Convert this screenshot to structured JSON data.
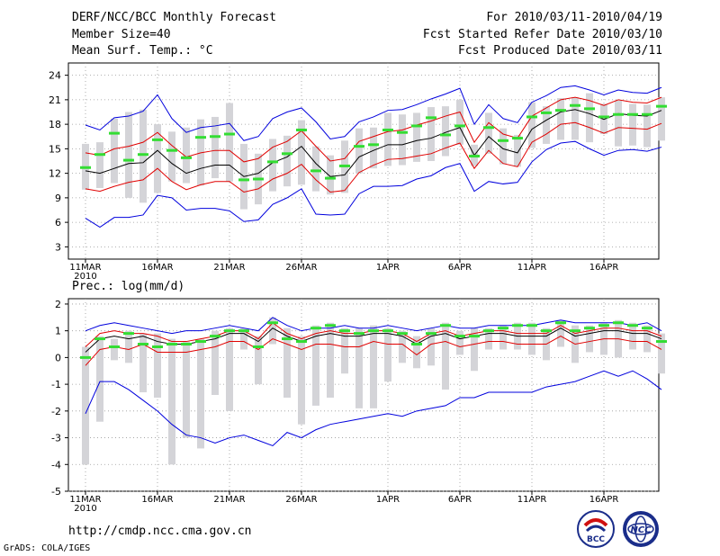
{
  "header": {
    "title_line1": "DERF/NCC/BCC Monthly Forecast",
    "title_line2": "Member Size=40",
    "title_line3": "Mean Surf. Temp.: °C",
    "range_line": "For 2010/03/11-2010/04/19",
    "start_line": "Fcst Started Refer Date 2010/03/10",
    "produced_line": "Fcst Produced Date 2010/03/11"
  },
  "footer": {
    "url": "http://cmdp.ncc.cma.gov.cn",
    "credit": "GrADS: COLA/IGES",
    "logo_bcc": "BCC",
    "logo_ncc": "NCC"
  },
  "colors": {
    "box": "#d4d4d8",
    "mean": "#000000",
    "inner": "#e00000",
    "outer": "#0000dd",
    "median": "#33dd33",
    "grid": "#999999"
  },
  "chart_data": [
    {
      "type": "line",
      "title": "Mean Surf. Temp.: °C",
      "xlabel": "",
      "ylabel": "",
      "x_ticks": [
        "11MAR",
        "16MAR",
        "21MAR",
        "26MAR",
        "1APR",
        "6APR",
        "11APR",
        "16APR"
      ],
      "x_tick_index": [
        0,
        5,
        10,
        15,
        21,
        26,
        31,
        36
      ],
      "x_sub_label": "2010",
      "days": 40,
      "ylim": [
        1.5,
        25.5
      ],
      "yticks": [
        3,
        6,
        9,
        12,
        15,
        18,
        21,
        24
      ],
      "series": {
        "mean": [
          12.3,
          12.0,
          12.6,
          13.2,
          13.3,
          14.8,
          13.2,
          12.0,
          12.6,
          13.0,
          13.0,
          11.6,
          12.0,
          13.3,
          14.0,
          15.3,
          13.2,
          11.6,
          11.8,
          14.0,
          14.8,
          15.5,
          15.5,
          16.0,
          16.3,
          17.0,
          17.6,
          14.2,
          16.5,
          15.0,
          14.5,
          17.4,
          18.5,
          19.5,
          19.8,
          19.3,
          18.6,
          19.3,
          19.1,
          19.0,
          19.7
        ],
        "inner_upper": [
          14.5,
          14.2,
          15.0,
          15.3,
          15.8,
          17.0,
          15.4,
          14.0,
          14.5,
          14.8,
          14.8,
          13.4,
          13.8,
          15.2,
          15.9,
          17.2,
          15.3,
          13.5,
          13.8,
          15.9,
          16.5,
          17.1,
          17.3,
          17.9,
          18.4,
          19.0,
          19.5,
          15.8,
          18.2,
          16.8,
          16.3,
          19.0,
          20.0,
          21.0,
          21.3,
          20.9,
          20.3,
          21.0,
          20.7,
          20.6,
          21.3
        ],
        "inner_lower": [
          10.1,
          9.8,
          10.4,
          10.9,
          11.2,
          12.6,
          11.0,
          10.0,
          10.6,
          11.0,
          11.0,
          9.7,
          10.1,
          11.3,
          12.0,
          13.1,
          11.2,
          9.7,
          9.9,
          12.1,
          13.0,
          13.7,
          13.8,
          14.1,
          14.4,
          15.1,
          15.7,
          12.6,
          14.8,
          13.2,
          12.8,
          15.8,
          16.8,
          18.0,
          18.2,
          17.6,
          16.9,
          17.6,
          17.5,
          17.4,
          18.1
        ],
        "outer_upper": [
          17.9,
          17.3,
          18.8,
          19.0,
          19.6,
          21.6,
          18.7,
          17.0,
          17.6,
          17.8,
          18.1,
          16.0,
          16.5,
          18.7,
          19.5,
          20.0,
          18.3,
          16.2,
          16.5,
          18.3,
          18.9,
          19.7,
          19.8,
          20.4,
          21.1,
          21.7,
          22.4,
          18.0,
          20.4,
          18.7,
          18.2,
          20.7,
          21.5,
          22.5,
          22.7,
          22.2,
          21.6,
          22.2,
          21.9,
          21.8,
          22.5
        ],
        "outer_lower": [
          6.5,
          5.4,
          6.6,
          6.6,
          6.9,
          9.3,
          9.0,
          7.5,
          7.7,
          7.7,
          7.4,
          6.1,
          6.3,
          8.2,
          9.0,
          10.1,
          7.0,
          6.9,
          7.0,
          9.5,
          10.4,
          10.4,
          10.5,
          11.3,
          11.7,
          12.7,
          13.2,
          9.8,
          11.0,
          10.7,
          10.9,
          13.4,
          14.9,
          15.7,
          15.9,
          15.0,
          14.2,
          14.8,
          14.9,
          14.7,
          15.2
        ],
        "median": [
          12.7,
          14.3,
          16.9,
          13.6,
          14.3,
          16.1,
          14.8,
          13.9,
          16.4,
          16.5,
          16.8,
          11.2,
          11.3,
          13.4,
          14.4,
          17.3,
          12.3,
          11.4,
          12.9,
          15.3,
          15.5,
          17.3,
          17.0,
          17.8,
          18.8,
          16.7,
          17.8,
          14.1,
          17.6,
          16.0,
          16.3,
          18.9,
          19.4,
          19.7,
          20.3,
          19.9,
          18.9,
          19.2,
          19.2,
          19.2,
          20.2
        ],
        "box_low": [
          10.0,
          10.2,
          10.8,
          9.0,
          8.4,
          9.6,
          11.0,
          10.8,
          10.5,
          11.4,
          11.0,
          7.6,
          8.2,
          9.8,
          10.4,
          10.6,
          9.8,
          9.4,
          9.6,
          12.0,
          12.6,
          12.9,
          13.0,
          13.4,
          13.5,
          14.1,
          15.5,
          12.9,
          14.4,
          13.1,
          12.8,
          15.1,
          15.6,
          16.1,
          16.1,
          15.8,
          16.8,
          15.3,
          15.4,
          15.2,
          16.0
        ],
        "box_high": [
          15.6,
          15.8,
          18.7,
          19.5,
          19.8,
          18.0,
          17.1,
          17.6,
          18.6,
          18.9,
          20.6,
          15.6,
          14.4,
          16.2,
          16.6,
          18.5,
          15.3,
          14.2,
          16.0,
          17.5,
          17.6,
          19.4,
          19.2,
          19.4,
          20.1,
          20.2,
          21.0,
          15.5,
          19.4,
          17.5,
          16.7,
          20.7,
          20.2,
          21.2,
          21.3,
          21.8,
          20.5,
          20.9,
          20.5,
          20.4,
          21.3
        ]
      }
    },
    {
      "type": "line",
      "title": "Prec.: log(mm/d)",
      "xlabel": "",
      "ylabel": "",
      "x_ticks": [
        "11MAR",
        "16MAR",
        "21MAR",
        "26MAR",
        "1APR",
        "6APR",
        "11APR",
        "16APR"
      ],
      "x_tick_index": [
        0,
        5,
        10,
        15,
        21,
        26,
        31,
        36
      ],
      "x_sub_label": "2010",
      "days": 40,
      "ylim": [
        -5,
        2.2
      ],
      "yticks": [
        -5,
        -4,
        -3,
        -2,
        -1,
        0,
        1,
        2
      ],
      "series": {
        "mean": [
          0.2,
          0.7,
          0.8,
          0.7,
          0.8,
          0.6,
          0.5,
          0.5,
          0.6,
          0.7,
          0.9,
          0.9,
          0.6,
          1.1,
          0.8,
          0.6,
          0.8,
          0.9,
          0.8,
          0.8,
          0.9,
          0.9,
          0.8,
          0.5,
          0.8,
          0.9,
          0.7,
          0.8,
          0.9,
          0.9,
          0.8,
          0.8,
          0.8,
          1.1,
          0.8,
          0.9,
          1.0,
          1.0,
          0.9,
          0.9,
          0.7
        ],
        "inner_upper": [
          0.4,
          0.9,
          1.0,
          0.9,
          0.9,
          0.8,
          0.6,
          0.6,
          0.7,
          0.8,
          1.0,
          1.0,
          0.7,
          1.3,
          0.9,
          0.7,
          0.9,
          1.0,
          0.9,
          0.9,
          1.0,
          1.0,
          0.9,
          0.6,
          0.9,
          1.0,
          0.8,
          0.9,
          1.0,
          1.0,
          0.9,
          0.9,
          0.9,
          1.2,
          0.9,
          1.0,
          1.1,
          1.1,
          1.0,
          1.0,
          0.8
        ],
        "inner_lower": [
          -0.3,
          0.3,
          0.4,
          0.3,
          0.5,
          0.2,
          0.2,
          0.2,
          0.3,
          0.4,
          0.6,
          0.6,
          0.3,
          0.7,
          0.5,
          0.3,
          0.5,
          0.5,
          0.4,
          0.4,
          0.6,
          0.5,
          0.5,
          0.1,
          0.5,
          0.6,
          0.4,
          0.5,
          0.6,
          0.6,
          0.5,
          0.5,
          0.5,
          0.8,
          0.5,
          0.6,
          0.7,
          0.7,
          0.6,
          0.6,
          0.3
        ],
        "outer_upper": [
          1.0,
          1.2,
          1.3,
          1.2,
          1.1,
          1.0,
          0.9,
          1.0,
          1.0,
          1.1,
          1.2,
          1.1,
          1.0,
          1.5,
          1.2,
          1.0,
          1.1,
          1.1,
          1.2,
          1.1,
          1.1,
          1.2,
          1.1,
          1.0,
          1.1,
          1.2,
          1.1,
          1.1,
          1.2,
          1.2,
          1.2,
          1.2,
          1.3,
          1.4,
          1.3,
          1.3,
          1.3,
          1.3,
          1.2,
          1.3,
          1.0
        ],
        "outer_lower": [
          -2.1,
          -0.9,
          -0.9,
          -1.2,
          -1.6,
          -2.0,
          -2.5,
          -2.9,
          -3.0,
          -3.2,
          -3.0,
          -2.9,
          -3.1,
          -3.3,
          -2.8,
          -3.0,
          -2.7,
          -2.5,
          -2.4,
          -2.3,
          -2.2,
          -2.1,
          -2.2,
          -2.0,
          -1.9,
          -1.8,
          -1.5,
          -1.5,
          -1.3,
          -1.3,
          -1.3,
          -1.3,
          -1.1,
          -1.0,
          -0.9,
          -0.7,
          -0.5,
          -0.7,
          -0.5,
          -0.8,
          -1.2
        ],
        "median": [
          0.0,
          0.7,
          0.4,
          0.9,
          0.5,
          0.4,
          0.5,
          0.5,
          0.6,
          0.8,
          1.0,
          1.0,
          0.4,
          1.3,
          0.7,
          0.6,
          1.1,
          1.2,
          1.0,
          0.9,
          1.0,
          1.0,
          0.9,
          0.5,
          0.9,
          1.2,
          0.8,
          0.8,
          1.0,
          1.1,
          1.2,
          1.2,
          1.0,
          1.3,
          1.0,
          1.1,
          1.2,
          1.3,
          1.2,
          1.1,
          0.6
        ],
        "box_low": [
          -4.0,
          -2.4,
          -0.1,
          -0.2,
          -1.3,
          -1.5,
          -4.0,
          -3.0,
          -3.4,
          -1.4,
          -2.0,
          0.3,
          -1.0,
          0.5,
          -1.5,
          -2.5,
          -1.8,
          -1.5,
          -0.6,
          -1.9,
          -1.9,
          -0.9,
          -0.2,
          -0.4,
          -0.3,
          -1.2,
          0.1,
          -0.5,
          0.3,
          0.3,
          0.3,
          0.1,
          -0.1,
          0.4,
          -0.2,
          0.2,
          0.1,
          0.0,
          0.3,
          0.2,
          -0.6
        ],
        "box_high": [
          0.4,
          0.8,
          0.7,
          1.0,
          0.9,
          0.9,
          0.7,
          0.6,
          0.7,
          1.0,
          1.1,
          1.1,
          0.8,
          1.5,
          1.1,
          0.8,
          1.2,
          1.3,
          1.1,
          1.1,
          1.2,
          1.1,
          1.0,
          0.8,
          1.1,
          1.3,
          1.0,
          1.1,
          1.1,
          1.2,
          1.3,
          1.3,
          1.1,
          1.4,
          1.2,
          1.2,
          1.3,
          1.4,
          1.3,
          1.2,
          0.9
        ]
      }
    }
  ]
}
